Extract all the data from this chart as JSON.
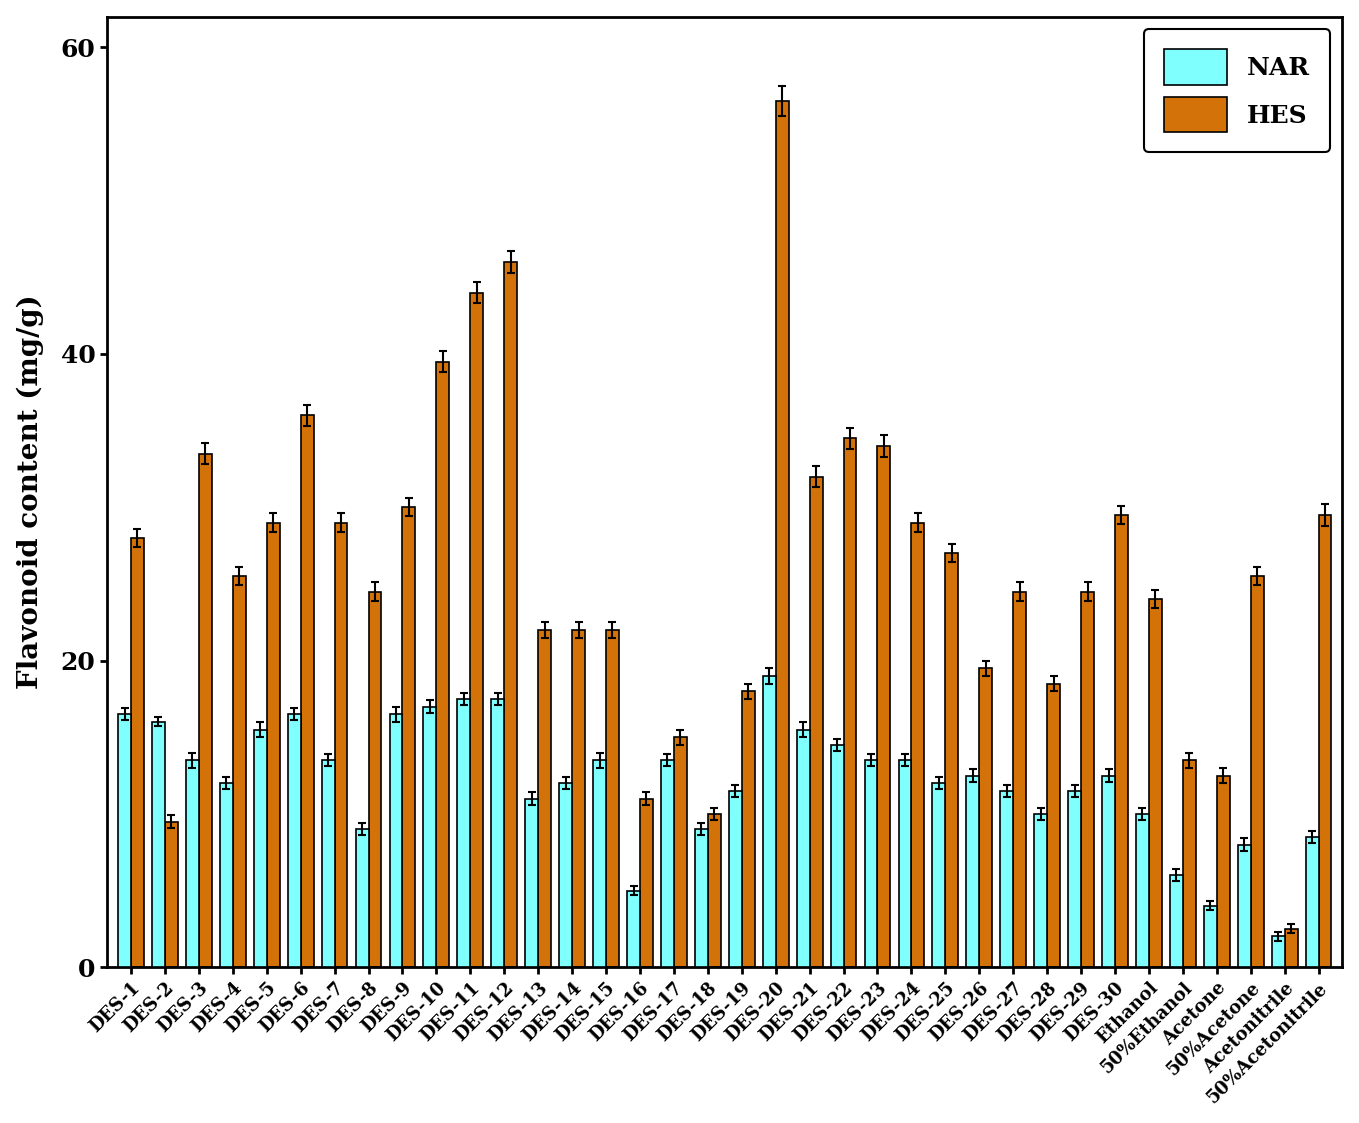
{
  "categories": [
    "DES-1",
    "DES-2",
    "DES-3",
    "DES-4",
    "DES-5",
    "DES-6",
    "DES-7",
    "DES-8",
    "DES-9",
    "DES-10",
    "DES-11",
    "DES-12",
    "DES-13",
    "DES-14",
    "DES-15",
    "DES-16",
    "DES-17",
    "DES-18",
    "DES-19",
    "DES-20",
    "DES-21",
    "DES-22",
    "DES-23",
    "DES-24",
    "DES-25",
    "DES-26",
    "DES-27",
    "DES-28",
    "DES-29",
    "DES-30",
    "Ethanol",
    "50%Ethanol",
    "Acetone",
    "50%Acetone",
    "Acetonitrile",
    "50%Acetonitrile"
  ],
  "NAR": [
    16.5,
    16.0,
    13.5,
    12.0,
    15.5,
    16.5,
    13.5,
    9.0,
    16.5,
    17.0,
    17.5,
    17.5,
    11.0,
    12.0,
    13.5,
    5.0,
    13.5,
    9.0,
    11.5,
    19.0,
    15.5,
    14.5,
    13.5,
    13.5,
    12.0,
    12.5,
    11.5,
    10.0,
    11.5,
    12.5,
    10.0,
    6.0,
    4.0,
    8.0,
    2.0,
    8.5
  ],
  "NAR_err": [
    0.4,
    0.3,
    0.5,
    0.4,
    0.5,
    0.4,
    0.4,
    0.4,
    0.5,
    0.4,
    0.4,
    0.4,
    0.4,
    0.4,
    0.5,
    0.3,
    0.4,
    0.4,
    0.4,
    0.5,
    0.5,
    0.4,
    0.4,
    0.4,
    0.4,
    0.4,
    0.4,
    0.4,
    0.4,
    0.4,
    0.4,
    0.4,
    0.3,
    0.4,
    0.3,
    0.4
  ],
  "HES": [
    28.0,
    9.5,
    33.5,
    25.5,
    29.0,
    36.0,
    29.0,
    24.5,
    30.0,
    39.5,
    44.0,
    46.0,
    22.0,
    22.0,
    22.0,
    11.0,
    15.0,
    10.0,
    18.0,
    56.5,
    32.0,
    34.5,
    34.0,
    29.0,
    27.0,
    19.5,
    24.5,
    18.5,
    24.5,
    29.5,
    24.0,
    13.5,
    12.5,
    25.5,
    2.5,
    29.5
  ],
  "HES_err": [
    0.6,
    0.4,
    0.7,
    0.6,
    0.6,
    0.7,
    0.6,
    0.6,
    0.6,
    0.7,
    0.7,
    0.7,
    0.5,
    0.5,
    0.5,
    0.4,
    0.5,
    0.4,
    0.5,
    1.0,
    0.7,
    0.7,
    0.7,
    0.6,
    0.6,
    0.5,
    0.6,
    0.5,
    0.6,
    0.6,
    0.6,
    0.5,
    0.5,
    0.6,
    0.3,
    0.7
  ],
  "NAR_color": "#80ffff",
  "HES_color": "#d4720a",
  "ylabel": "Flavonoid content (mg/g)",
  "ylim": [
    0,
    62
  ],
  "yticks": [
    0,
    20,
    40,
    60
  ],
  "bar_width": 0.38,
  "figsize": [
    13.59,
    11.23
  ],
  "legend_labels": [
    "NAR",
    "HES"
  ],
  "background_color": "#ffffff"
}
